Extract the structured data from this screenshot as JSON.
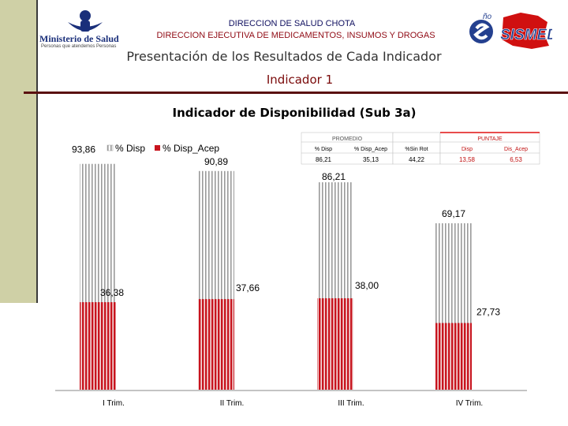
{
  "header": {
    "ministry_brand": "Ministerio de Salud",
    "ministry_tagline": "Personas que atendemos Personas",
    "line1": "DIRECCION DE SALUD CHOTA",
    "line2": "DIRECCION EJECUTIVA DE MEDICAMENTOS, INSUMOS Y DROGAS",
    "right_logo_text": "SISMED",
    "right_logo_sup": "ño"
  },
  "subtitle": "Presentación de los Resultados de Cada Indicador",
  "indicador": "Indicador 1",
  "colors": {
    "disp": "#b4b4b4",
    "disp_acep": "#c8141e",
    "header_red": "#900a14",
    "header_blue": "#101060",
    "sidebar": "#cfd0a6",
    "puntaje_header": "#e01010"
  },
  "summary_table": {
    "promedio_label": "PROMEDIO",
    "puntaje_label": "PUNTAJE",
    "columns": [
      "% Disp",
      "% Disp_Acep",
      "%Sin Rot",
      "Disp",
      "Dis_Acep"
    ],
    "values": [
      "86,21",
      "35,13",
      "44,22",
      "13,58",
      "6,53"
    ]
  },
  "chart_data": {
    "type": "bar",
    "title": "Indicador de Disponibilidad (Sub 3a)",
    "categories": [
      "I Trim.",
      "II Trim.",
      "III Trim.",
      "IV Trim."
    ],
    "series": [
      {
        "name": "% Disp",
        "values": [
          93.86,
          90.89,
          86.21,
          69.17
        ],
        "labels": [
          "93,86",
          "90,89",
          "86,21",
          "69,17"
        ]
      },
      {
        "name": "% Disp_Acep",
        "values": [
          36.38,
          37.66,
          38.0,
          27.73
        ],
        "labels": [
          "36,38",
          "37,66",
          "38,00",
          "27,73"
        ]
      }
    ],
    "ylim": [
      0,
      100
    ],
    "legend": "top-left",
    "grid": false
  }
}
